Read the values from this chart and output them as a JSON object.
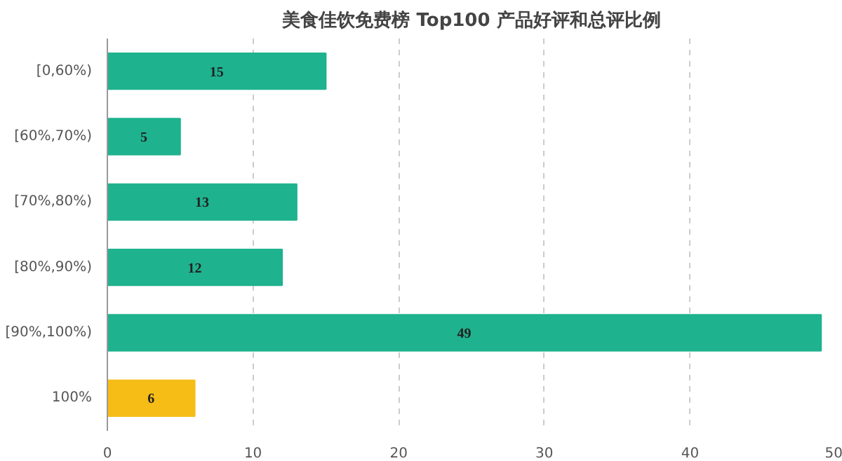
{
  "chart_data": {
    "type": "bar",
    "orientation": "horizontal",
    "title": "美食佳饮免费榜 Top100 产品好评和总评比例",
    "categories": [
      "[0,60%)",
      "[60%,70%)",
      "[70%,80%)",
      "[80%,90%)",
      "[90%,100%)",
      "100%"
    ],
    "values": [
      15,
      5,
      13,
      12,
      49,
      6
    ],
    "colors": [
      "#1fb28e",
      "#1fb28e",
      "#1fb28e",
      "#1fb28e",
      "#1fb28e",
      "#f6bd16"
    ],
    "xlim": [
      0,
      50
    ],
    "xticks": [
      0,
      10,
      20,
      30,
      40,
      50
    ],
    "grid": "x",
    "data_labels": true
  }
}
